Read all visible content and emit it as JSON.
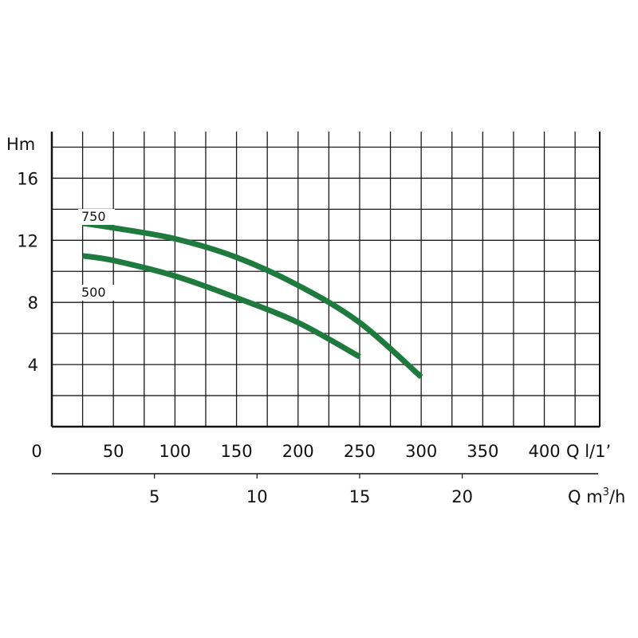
{
  "chart_data": {
    "type": "line",
    "y_axis": {
      "label": "Hm",
      "ticks": [
        4,
        8,
        12,
        16
      ],
      "range": [
        0,
        19
      ]
    },
    "x_axis_primary": {
      "unit_label": "Q l/1’",
      "zero_label": "0",
      "ticks": [
        50,
        100,
        150,
        200,
        250,
        300,
        350,
        400
      ],
      "range": [
        0,
        445
      ]
    },
    "x_axis_secondary": {
      "unit_label_main": "Q m",
      "unit_label_sup": "3",
      "unit_label_tail": "/h",
      "ticks": [
        5,
        10,
        15,
        20
      ],
      "range_m3h": [
        0,
        26.7
      ]
    },
    "grid": true,
    "series": [
      {
        "name": "750",
        "color": "#1f7a3e",
        "x": [
          25,
          50,
          100,
          150,
          200,
          250,
          300
        ],
        "y": [
          13.1,
          12.8,
          12.1,
          10.9,
          9.1,
          6.7,
          3.2
        ]
      },
      {
        "name": "500",
        "color": "#1f7a3e",
        "x": [
          25,
          50,
          100,
          150,
          200,
          250
        ],
        "y": [
          11.0,
          10.7,
          9.7,
          8.3,
          6.7,
          4.5
        ]
      }
    ]
  }
}
